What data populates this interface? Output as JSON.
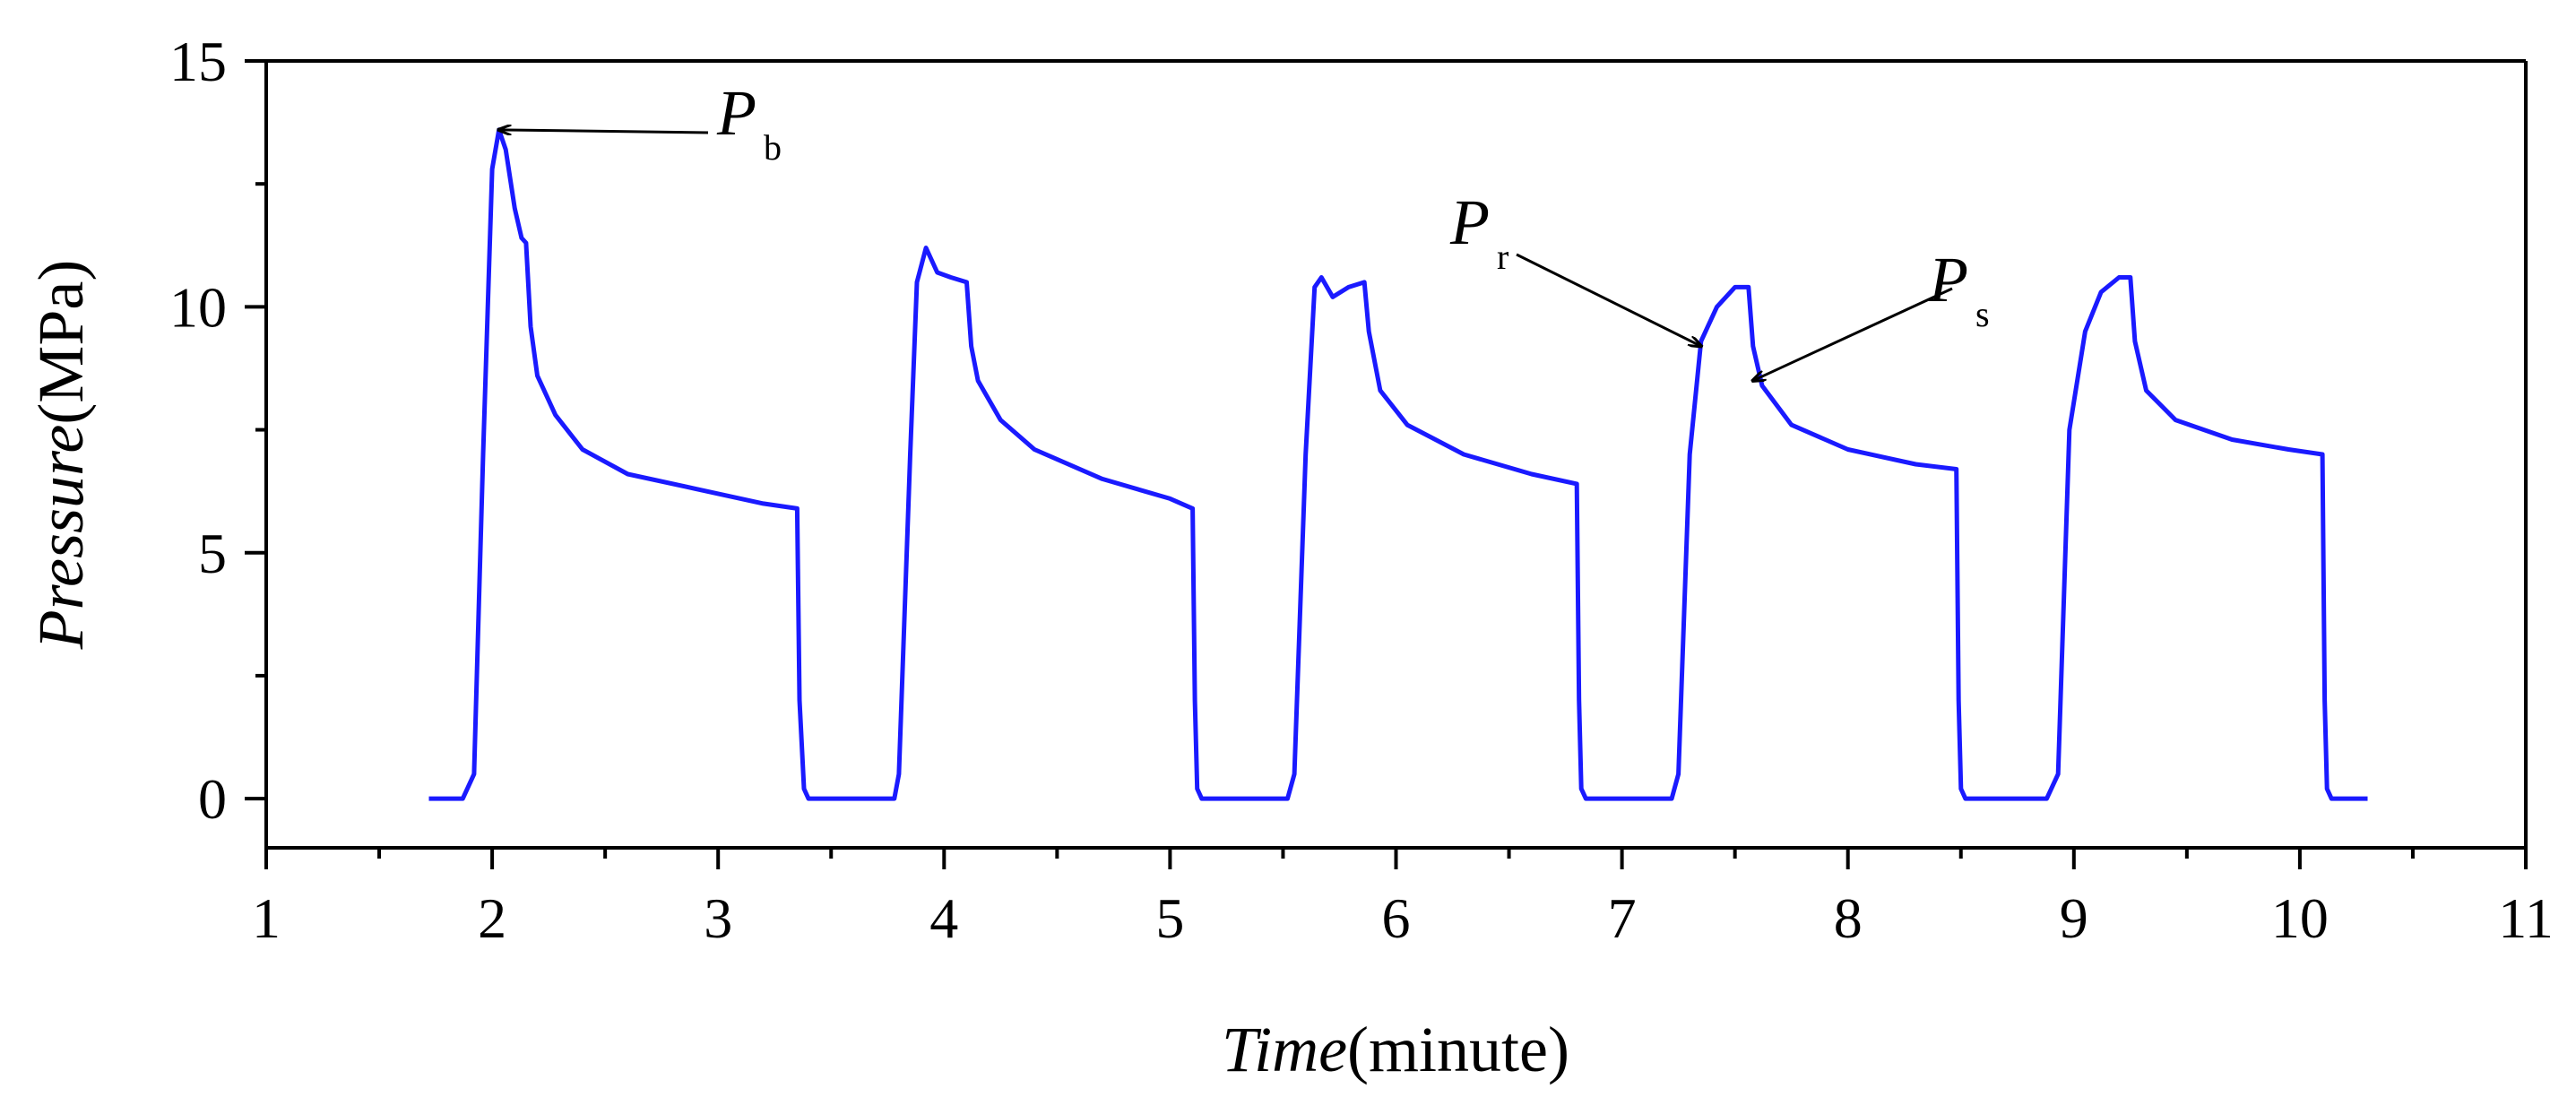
{
  "chart_data": {
    "type": "line",
    "xlabel_italic": "Time",
    "xlabel_unit": "(minute)",
    "ylabel_italic": "Pressure",
    "ylabel_unit": "(MPa)",
    "xlim": [
      1,
      11
    ],
    "ylim": [
      -1,
      15
    ],
    "xticks": [
      1,
      2,
      3,
      4,
      5,
      6,
      7,
      8,
      9,
      10,
      11
    ],
    "yticks": [
      0,
      5,
      10,
      15
    ],
    "grid": false,
    "series": [
      {
        "name": "Pressure",
        "color": "#1a1aff",
        "points": [
          [
            1.72,
            0
          ],
          [
            1.87,
            0
          ],
          [
            1.92,
            0.5
          ],
          [
            1.96,
            7
          ],
          [
            2.0,
            12.8
          ],
          [
            2.03,
            13.6
          ],
          [
            2.06,
            13.2
          ],
          [
            2.1,
            12.0
          ],
          [
            2.13,
            11.4
          ],
          [
            2.15,
            11.3
          ],
          [
            2.17,
            9.6
          ],
          [
            2.2,
            8.6
          ],
          [
            2.28,
            7.8
          ],
          [
            2.4,
            7.1
          ],
          [
            2.6,
            6.6
          ],
          [
            2.9,
            6.3
          ],
          [
            3.2,
            6.0
          ],
          [
            3.35,
            5.9
          ],
          [
            3.36,
            2
          ],
          [
            3.38,
            0.2
          ],
          [
            3.4,
            0
          ],
          [
            3.78,
            0
          ],
          [
            3.8,
            0.5
          ],
          [
            3.85,
            7
          ],
          [
            3.88,
            10.5
          ],
          [
            3.92,
            11.2
          ],
          [
            3.97,
            10.7
          ],
          [
            4.03,
            10.6
          ],
          [
            4.1,
            10.5
          ],
          [
            4.12,
            9.2
          ],
          [
            4.15,
            8.5
          ],
          [
            4.25,
            7.7
          ],
          [
            4.4,
            7.1
          ],
          [
            4.7,
            6.5
          ],
          [
            5.0,
            6.1
          ],
          [
            5.1,
            5.9
          ],
          [
            5.11,
            2
          ],
          [
            5.12,
            0.2
          ],
          [
            5.14,
            0
          ],
          [
            5.52,
            0
          ],
          [
            5.55,
            0.5
          ],
          [
            5.6,
            7
          ],
          [
            5.64,
            10.4
          ],
          [
            5.67,
            10.6
          ],
          [
            5.72,
            10.2
          ],
          [
            5.79,
            10.4
          ],
          [
            5.86,
            10.5
          ],
          [
            5.88,
            9.5
          ],
          [
            5.93,
            8.3
          ],
          [
            6.05,
            7.6
          ],
          [
            6.3,
            7.0
          ],
          [
            6.6,
            6.6
          ],
          [
            6.8,
            6.4
          ],
          [
            6.81,
            2
          ],
          [
            6.82,
            0.2
          ],
          [
            6.84,
            0
          ],
          [
            7.22,
            0
          ],
          [
            7.25,
            0.5
          ],
          [
            7.3,
            7
          ],
          [
            7.35,
            9.3
          ],
          [
            7.42,
            10.0
          ],
          [
            7.5,
            10.4
          ],
          [
            7.56,
            10.4
          ],
          [
            7.58,
            9.2
          ],
          [
            7.62,
            8.4
          ],
          [
            7.75,
            7.6
          ],
          [
            8.0,
            7.1
          ],
          [
            8.3,
            6.8
          ],
          [
            8.48,
            6.7
          ],
          [
            8.49,
            2
          ],
          [
            8.5,
            0.2
          ],
          [
            8.52,
            0
          ],
          [
            8.88,
            0
          ],
          [
            8.93,
            0.5
          ],
          [
            8.98,
            7.5
          ],
          [
            9.05,
            9.5
          ],
          [
            9.12,
            10.3
          ],
          [
            9.2,
            10.6
          ],
          [
            9.25,
            10.6
          ],
          [
            9.27,
            9.3
          ],
          [
            9.32,
            8.3
          ],
          [
            9.45,
            7.7
          ],
          [
            9.7,
            7.3
          ],
          [
            9.95,
            7.1
          ],
          [
            10.1,
            7.0
          ],
          [
            10.11,
            2
          ],
          [
            10.12,
            0.2
          ],
          [
            10.14,
            0
          ],
          [
            10.3,
            0
          ]
        ]
      }
    ],
    "annotations": [
      {
        "id": "Pb",
        "label": "P",
        "subscript": "b",
        "x": 2.03,
        "y": 13.6
      },
      {
        "id": "Pr",
        "label": "P",
        "subscript": "r",
        "x": 7.35,
        "y": 9.2
      },
      {
        "id": "Ps",
        "label": "P",
        "subscript": "s",
        "x": 7.58,
        "y": 8.5
      }
    ]
  }
}
